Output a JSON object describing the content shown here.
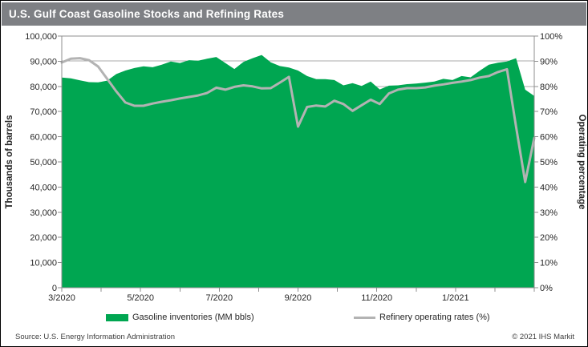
{
  "title": "U.S. Gulf Coast Gasoline Stocks and Refining Rates",
  "legend": [
    {
      "label": "Gasoline inventories (MM bbls)",
      "swatch": "area"
    },
    {
      "label": "Refinery operating rates (%)",
      "swatch": "line"
    }
  ],
  "footer": {
    "source": "Source: U.S. Energy Information Administration",
    "copyright": "© 2021 IHS Markit"
  },
  "colors": {
    "area_green": "#00a651",
    "line_gray": "#b3b3b3",
    "title_bar_gray": "#7e8084",
    "axis_line": "#8f8f8f",
    "grid_line": "#ababab",
    "tick_text": "#262626"
  },
  "chart_data": {
    "type": "area",
    "description": "Weekly data, March 2020 through early March 2021; green area = gasoline inventories (left axis, thousands of barrels), gray line = refinery operating rates (right axis, percent)",
    "title": "U.S. Gulf Coast Gasoline Stocks and Refining Rates",
    "x_month_ticks": {
      "count": 13,
      "labels": [
        "3/2020",
        "5/2020",
        "7/2020",
        "9/2020",
        "11/2020",
        "1/2021"
      ],
      "label_every_n_months": 2
    },
    "y_left": {
      "title": "Thousands of barrels",
      "min": 0,
      "max": 100000,
      "step": 10000,
      "tick_labels": [
        "0",
        "10,000",
        "20,000",
        "30,000",
        "40,000",
        "50,000",
        "60,000",
        "70,000",
        "80,000",
        "90,000",
        "100,000"
      ]
    },
    "y_right": {
      "title": "Operating percentage",
      "min": 0,
      "max": 100,
      "step": 10,
      "tick_labels": [
        "0%",
        "10%",
        "20%",
        "30%",
        "40%",
        "50%",
        "60%",
        "70%",
        "80%",
        "90%",
        "100%"
      ]
    },
    "grid": true,
    "legend_position": "bottom",
    "series": [
      {
        "name": "Gasoline inventories (MM bbls)",
        "type": "area",
        "axis": "left",
        "color": "#00a651",
        "values": [
          83500,
          83200,
          82400,
          81700,
          81600,
          82300,
          84900,
          86300,
          87300,
          88000,
          87600,
          88600,
          89900,
          89300,
          90400,
          90200,
          91000,
          91700,
          89300,
          86900,
          89700,
          91200,
          92500,
          89600,
          88100,
          87500,
          86300,
          84100,
          82900,
          82900,
          82500,
          80400,
          81300,
          80200,
          81900,
          78800,
          80300,
          80400,
          80900,
          81100,
          81500,
          81900,
          83000,
          82500,
          84100,
          83600,
          86200,
          88600,
          89400,
          89900,
          91200,
          78700,
          76200
        ]
      },
      {
        "name": "Refinery operating rates (%)",
        "type": "line",
        "axis": "right",
        "color": "#b3b3b3",
        "values": [
          89.5,
          91.0,
          91.2,
          90.4,
          87.9,
          83.0,
          78.0,
          73.6,
          72.3,
          72.3,
          73.2,
          73.9,
          74.5,
          75.2,
          75.8,
          76.4,
          77.4,
          79.5,
          78.7,
          79.8,
          80.4,
          80.0,
          79.2,
          79.3,
          81.5,
          83.8,
          64.0,
          71.8,
          72.4,
          72.0,
          74.3,
          73.0,
          70.3,
          72.5,
          74.7,
          73.0,
          77.2,
          78.7,
          79.3,
          79.3,
          79.6,
          80.3,
          80.8,
          81.4,
          81.9,
          82.5,
          83.5,
          84.1,
          85.7,
          86.8,
          64.0,
          42.0,
          59.5
        ]
      }
    ]
  }
}
